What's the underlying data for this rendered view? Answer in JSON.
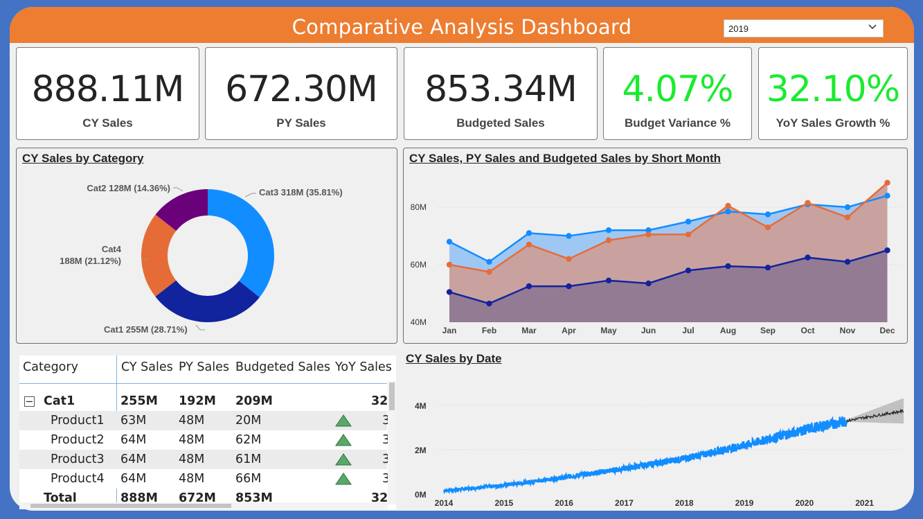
{
  "header": {
    "title": "Comparative Analysis Dashboard",
    "year_filter": "2019",
    "chevron_icon": "chevron-down-icon",
    "color": "#ed7d31"
  },
  "kpis": [
    {
      "value": "888.11M",
      "label": "CY Sales",
      "color": "#252423"
    },
    {
      "value": "672.30M",
      "label": "PY Sales",
      "color": "#252423"
    },
    {
      "value": "853.34M",
      "label": "Budgeted Sales",
      "color": "#252423"
    },
    {
      "value": "4.07%",
      "label": "Budget Variance %",
      "color": "#1aeb2f"
    },
    {
      "value": "32.10%",
      "label": "YoY Sales Growth %",
      "color": "#1aeb2f"
    }
  ],
  "donut": {
    "title": "CY Sales by Category",
    "chart_data": {
      "type": "pie",
      "slices": [
        {
          "name": "Cat3",
          "value": 318,
          "pct": 35.81,
          "label": "Cat3 318M (35.81%)",
          "color": "#118dff"
        },
        {
          "name": "Cat1",
          "value": 255,
          "pct": 28.71,
          "label": "Cat1 255M (28.71%)",
          "color": "#12239e"
        },
        {
          "name": "Cat4",
          "value": 188,
          "pct": 21.12,
          "label_line1": "Cat4",
          "label_line2": "188M (21.12%)",
          "color": "#e66c37"
        },
        {
          "name": "Cat2",
          "value": 128,
          "pct": 14.36,
          "label": "Cat2 128M (14.36%)",
          "color": "#6b007b"
        }
      ]
    }
  },
  "month_chart": {
    "title": "CY Sales, PY Sales and Budgeted Sales by Short Month",
    "chart_data": {
      "type": "area",
      "categories": [
        "Jan",
        "Feb",
        "Mar",
        "Apr",
        "May",
        "Jun",
        "Jul",
        "Aug",
        "Sep",
        "Oct",
        "Nov",
        "Dec"
      ],
      "series": [
        {
          "values": [
            68,
            61,
            71,
            70,
            72,
            72,
            75,
            78.5,
            77.5,
            81,
            80,
            84
          ],
          "color": "#118dff",
          "fill": "#9fc7f4"
        },
        {
          "values": [
            60,
            57.5,
            67,
            62,
            68.5,
            70.5,
            70.5,
            80.5,
            73,
            81.5,
            76.5,
            88.5
          ],
          "color": "#e66c37",
          "fill": "#c9a2a0"
        },
        {
          "values": [
            50.5,
            46.5,
            52.5,
            52.5,
            54.5,
            53.5,
            58,
            59.5,
            59,
            62.5,
            61,
            65
          ],
          "color": "#12239e",
          "fill": "#937b94"
        }
      ],
      "yticks": [
        "80M",
        "60M",
        "40M"
      ],
      "ylim": [
        40,
        90
      ],
      "grid": true
    }
  },
  "date_chart": {
    "title": "CY Sales by Date",
    "chart_data": {
      "type": "line",
      "x_ticks": [
        "2014",
        "2015",
        "2016",
        "2017",
        "2018",
        "2019",
        "2020",
        "2021"
      ],
      "y_ticks": [
        "4M",
        "2M",
        "0M"
      ],
      "ylim": [
        0,
        4.5
      ],
      "actual_color": "#118dff",
      "forecast_color": "#252423",
      "band_color": "#b8b8b8",
      "actual_trend": [
        [
          2014.0,
          0.15
        ],
        [
          2015.0,
          0.4
        ],
        [
          2016.0,
          0.75
        ],
        [
          2017.0,
          1.15
        ],
        [
          2018.0,
          1.6
        ],
        [
          2019.0,
          2.2
        ],
        [
          2020.0,
          2.9
        ],
        [
          2020.7,
          3.3
        ]
      ],
      "forecast_trend": [
        [
          2020.7,
          3.3
        ],
        [
          2021.0,
          3.45
        ],
        [
          2021.65,
          3.75
        ]
      ]
    }
  },
  "table": {
    "columns": [
      "Category",
      "CY Sales",
      "PY Sales",
      "Budgeted Sales",
      "YoY Sales"
    ],
    "expand_icon": "collapse-minus-icon",
    "group": {
      "name": "Cat1",
      "cy": "255M",
      "py": "192M",
      "budget": "209M",
      "yoy": "32"
    },
    "rows": [
      {
        "name": "Product1",
        "cy": "63M",
        "py": "48M",
        "budget": "20M",
        "yoy": "3"
      },
      {
        "name": "Product2",
        "cy": "64M",
        "py": "48M",
        "budget": "62M",
        "yoy": "3"
      },
      {
        "name": "Product3",
        "cy": "64M",
        "py": "48M",
        "budget": "61M",
        "yoy": "3"
      },
      {
        "name": "Product4",
        "cy": "64M",
        "py": "48M",
        "budget": "66M",
        "yoy": "3"
      }
    ],
    "total": {
      "name": "Total",
      "cy": "888M",
      "py": "672M",
      "budget": "853M",
      "yoy": "32"
    },
    "up_icon": "triangle-up-icon",
    "up_color": "#5aa868"
  }
}
